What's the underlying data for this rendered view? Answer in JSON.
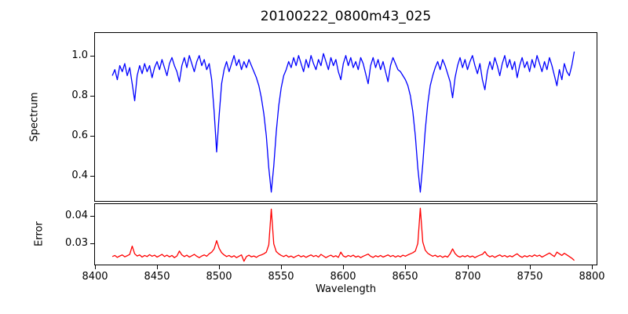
{
  "title": "20100222_0800m43_025",
  "colors": {
    "spectrum_line": "#0000ff",
    "error_line": "#ff0000",
    "axis": "#000000",
    "background": "#ffffff"
  },
  "chart_data": {
    "type": "line",
    "title": "20100222_0800m43_025",
    "xlabel": "Wavelength",
    "xlim": [
      8399.4,
      8804.6
    ],
    "x_ticks": [
      8400,
      8450,
      8500,
      8550,
      8600,
      8650,
      8700,
      8750,
      8800
    ],
    "x_tick_labels": [
      "8400",
      "8450",
      "8500",
      "8550",
      "8600",
      "8650",
      "8700",
      "8750",
      "8800"
    ],
    "grid": false,
    "legend": "none",
    "panels": [
      {
        "name": "spectrum",
        "ylabel": "Spectrum",
        "ylim": [
          0.272,
          1.1165
        ],
        "y_ticks": [
          0.4,
          0.6,
          0.8,
          1.0
        ],
        "y_tick_labels": [
          "0.4",
          "0.6",
          "0.8",
          "1.0"
        ],
        "color": "#0000ff",
        "x0": 8414,
        "dx": 2,
        "values": [
          0.9,
          0.93,
          0.88,
          0.95,
          0.92,
          0.96,
          0.9,
          0.94,
          0.86,
          0.775,
          0.9,
          0.95,
          0.91,
          0.96,
          0.92,
          0.95,
          0.89,
          0.94,
          0.97,
          0.93,
          0.98,
          0.94,
          0.9,
          0.96,
          0.99,
          0.95,
          0.92,
          0.87,
          0.95,
          0.99,
          0.94,
          1.0,
          0.96,
          0.92,
          0.97,
          1.0,
          0.95,
          0.98,
          0.93,
          0.96,
          0.88,
          0.72,
          0.52,
          0.7,
          0.86,
          0.93,
          0.97,
          0.92,
          0.96,
          1.0,
          0.95,
          0.98,
          0.93,
          0.97,
          0.94,
          0.98,
          0.95,
          0.92,
          0.89,
          0.85,
          0.79,
          0.71,
          0.6,
          0.44,
          0.32,
          0.45,
          0.62,
          0.75,
          0.84,
          0.9,
          0.93,
          0.97,
          0.94,
          0.99,
          0.95,
          1.0,
          0.96,
          0.92,
          0.98,
          0.94,
          1.0,
          0.96,
          0.93,
          0.98,
          0.95,
          1.01,
          0.97,
          0.93,
          0.99,
          0.95,
          0.98,
          0.92,
          0.88,
          0.96,
          1.0,
          0.95,
          0.99,
          0.94,
          0.97,
          0.93,
          0.99,
          0.96,
          0.91,
          0.86,
          0.95,
          0.99,
          0.94,
          0.98,
          0.93,
          0.97,
          0.92,
          0.87,
          0.95,
          0.99,
          0.96,
          0.93,
          0.92,
          0.9,
          0.88,
          0.85,
          0.8,
          0.72,
          0.6,
          0.44,
          0.32,
          0.46,
          0.63,
          0.76,
          0.85,
          0.9,
          0.94,
          0.97,
          0.93,
          0.98,
          0.95,
          0.91,
          0.87,
          0.79,
          0.89,
          0.95,
          0.99,
          0.94,
          0.98,
          0.93,
          0.97,
          1.0,
          0.95,
          0.91,
          0.96,
          0.88,
          0.83,
          0.92,
          0.97,
          0.93,
          0.99,
          0.95,
          0.9,
          0.96,
          1.0,
          0.94,
          0.98,
          0.93,
          0.97,
          0.89,
          0.95,
          0.99,
          0.94,
          0.97,
          0.92,
          0.98,
          0.94,
          1.0,
          0.96,
          0.92,
          0.97,
          0.93,
          0.99,
          0.95,
          0.9,
          0.85,
          0.93,
          0.88,
          0.96,
          0.92,
          0.9,
          0.95,
          1.02
        ]
      },
      {
        "name": "error",
        "ylabel": "Error",
        "ylim": [
          0.022,
          0.0446
        ],
        "y_ticks": [
          0.03,
          0.04
        ],
        "y_tick_labels": [
          "0.03",
          "0.04"
        ],
        "color": "#ff0000",
        "x0": 8414,
        "dx": 2,
        "values": [
          0.0252,
          0.0256,
          0.0249,
          0.0254,
          0.0258,
          0.0251,
          0.0255,
          0.026,
          0.029,
          0.0262,
          0.0254,
          0.0258,
          0.025,
          0.0256,
          0.0252,
          0.0259,
          0.0253,
          0.0257,
          0.025,
          0.0255,
          0.026,
          0.0252,
          0.0257,
          0.0251,
          0.0256,
          0.0248,
          0.0254,
          0.0272,
          0.0258,
          0.0252,
          0.0257,
          0.025,
          0.0255,
          0.026,
          0.0253,
          0.0248,
          0.0254,
          0.0258,
          0.0253,
          0.0262,
          0.0268,
          0.028,
          0.031,
          0.0282,
          0.0266,
          0.0258,
          0.0252,
          0.0256,
          0.025,
          0.0255,
          0.0248,
          0.0253,
          0.0258,
          0.0235,
          0.0252,
          0.0257,
          0.0251,
          0.0254,
          0.0249,
          0.0255,
          0.0258,
          0.0262,
          0.0268,
          0.0295,
          0.0425,
          0.0298,
          0.027,
          0.0262,
          0.0256,
          0.0252,
          0.0257,
          0.025,
          0.0254,
          0.0248,
          0.0253,
          0.0257,
          0.0251,
          0.0255,
          0.0249,
          0.0254,
          0.0258,
          0.0252,
          0.0256,
          0.025,
          0.026,
          0.0254,
          0.0248,
          0.0253,
          0.0257,
          0.0251,
          0.0255,
          0.0249,
          0.0268,
          0.0254,
          0.025,
          0.0256,
          0.0252,
          0.0257,
          0.025,
          0.0254,
          0.0248,
          0.0253,
          0.0257,
          0.0261,
          0.0253,
          0.0249,
          0.0255,
          0.0251,
          0.0256,
          0.025,
          0.0254,
          0.0258,
          0.0252,
          0.0256,
          0.025,
          0.0255,
          0.0251,
          0.0257,
          0.0253,
          0.0258,
          0.0262,
          0.0266,
          0.0272,
          0.03,
          0.0428,
          0.0305,
          0.0275,
          0.0264,
          0.0258,
          0.0253,
          0.0257,
          0.0251,
          0.0255,
          0.0249,
          0.0254,
          0.025,
          0.0262,
          0.028,
          0.0263,
          0.0254,
          0.025,
          0.0255,
          0.0251,
          0.0256,
          0.025,
          0.0254,
          0.0248,
          0.0253,
          0.0257,
          0.026,
          0.027,
          0.0257,
          0.0251,
          0.0255,
          0.0249,
          0.0254,
          0.0258,
          0.0252,
          0.0256,
          0.025,
          0.0255,
          0.0251,
          0.0257,
          0.0262,
          0.0254,
          0.0249,
          0.0255,
          0.0251,
          0.0256,
          0.0252,
          0.0258,
          0.0253,
          0.0257,
          0.025,
          0.0255,
          0.026,
          0.0265,
          0.0258,
          0.0252,
          0.0268,
          0.0262,
          0.0256,
          0.0264,
          0.0258,
          0.0252,
          0.0246,
          0.0238
        ]
      }
    ]
  }
}
